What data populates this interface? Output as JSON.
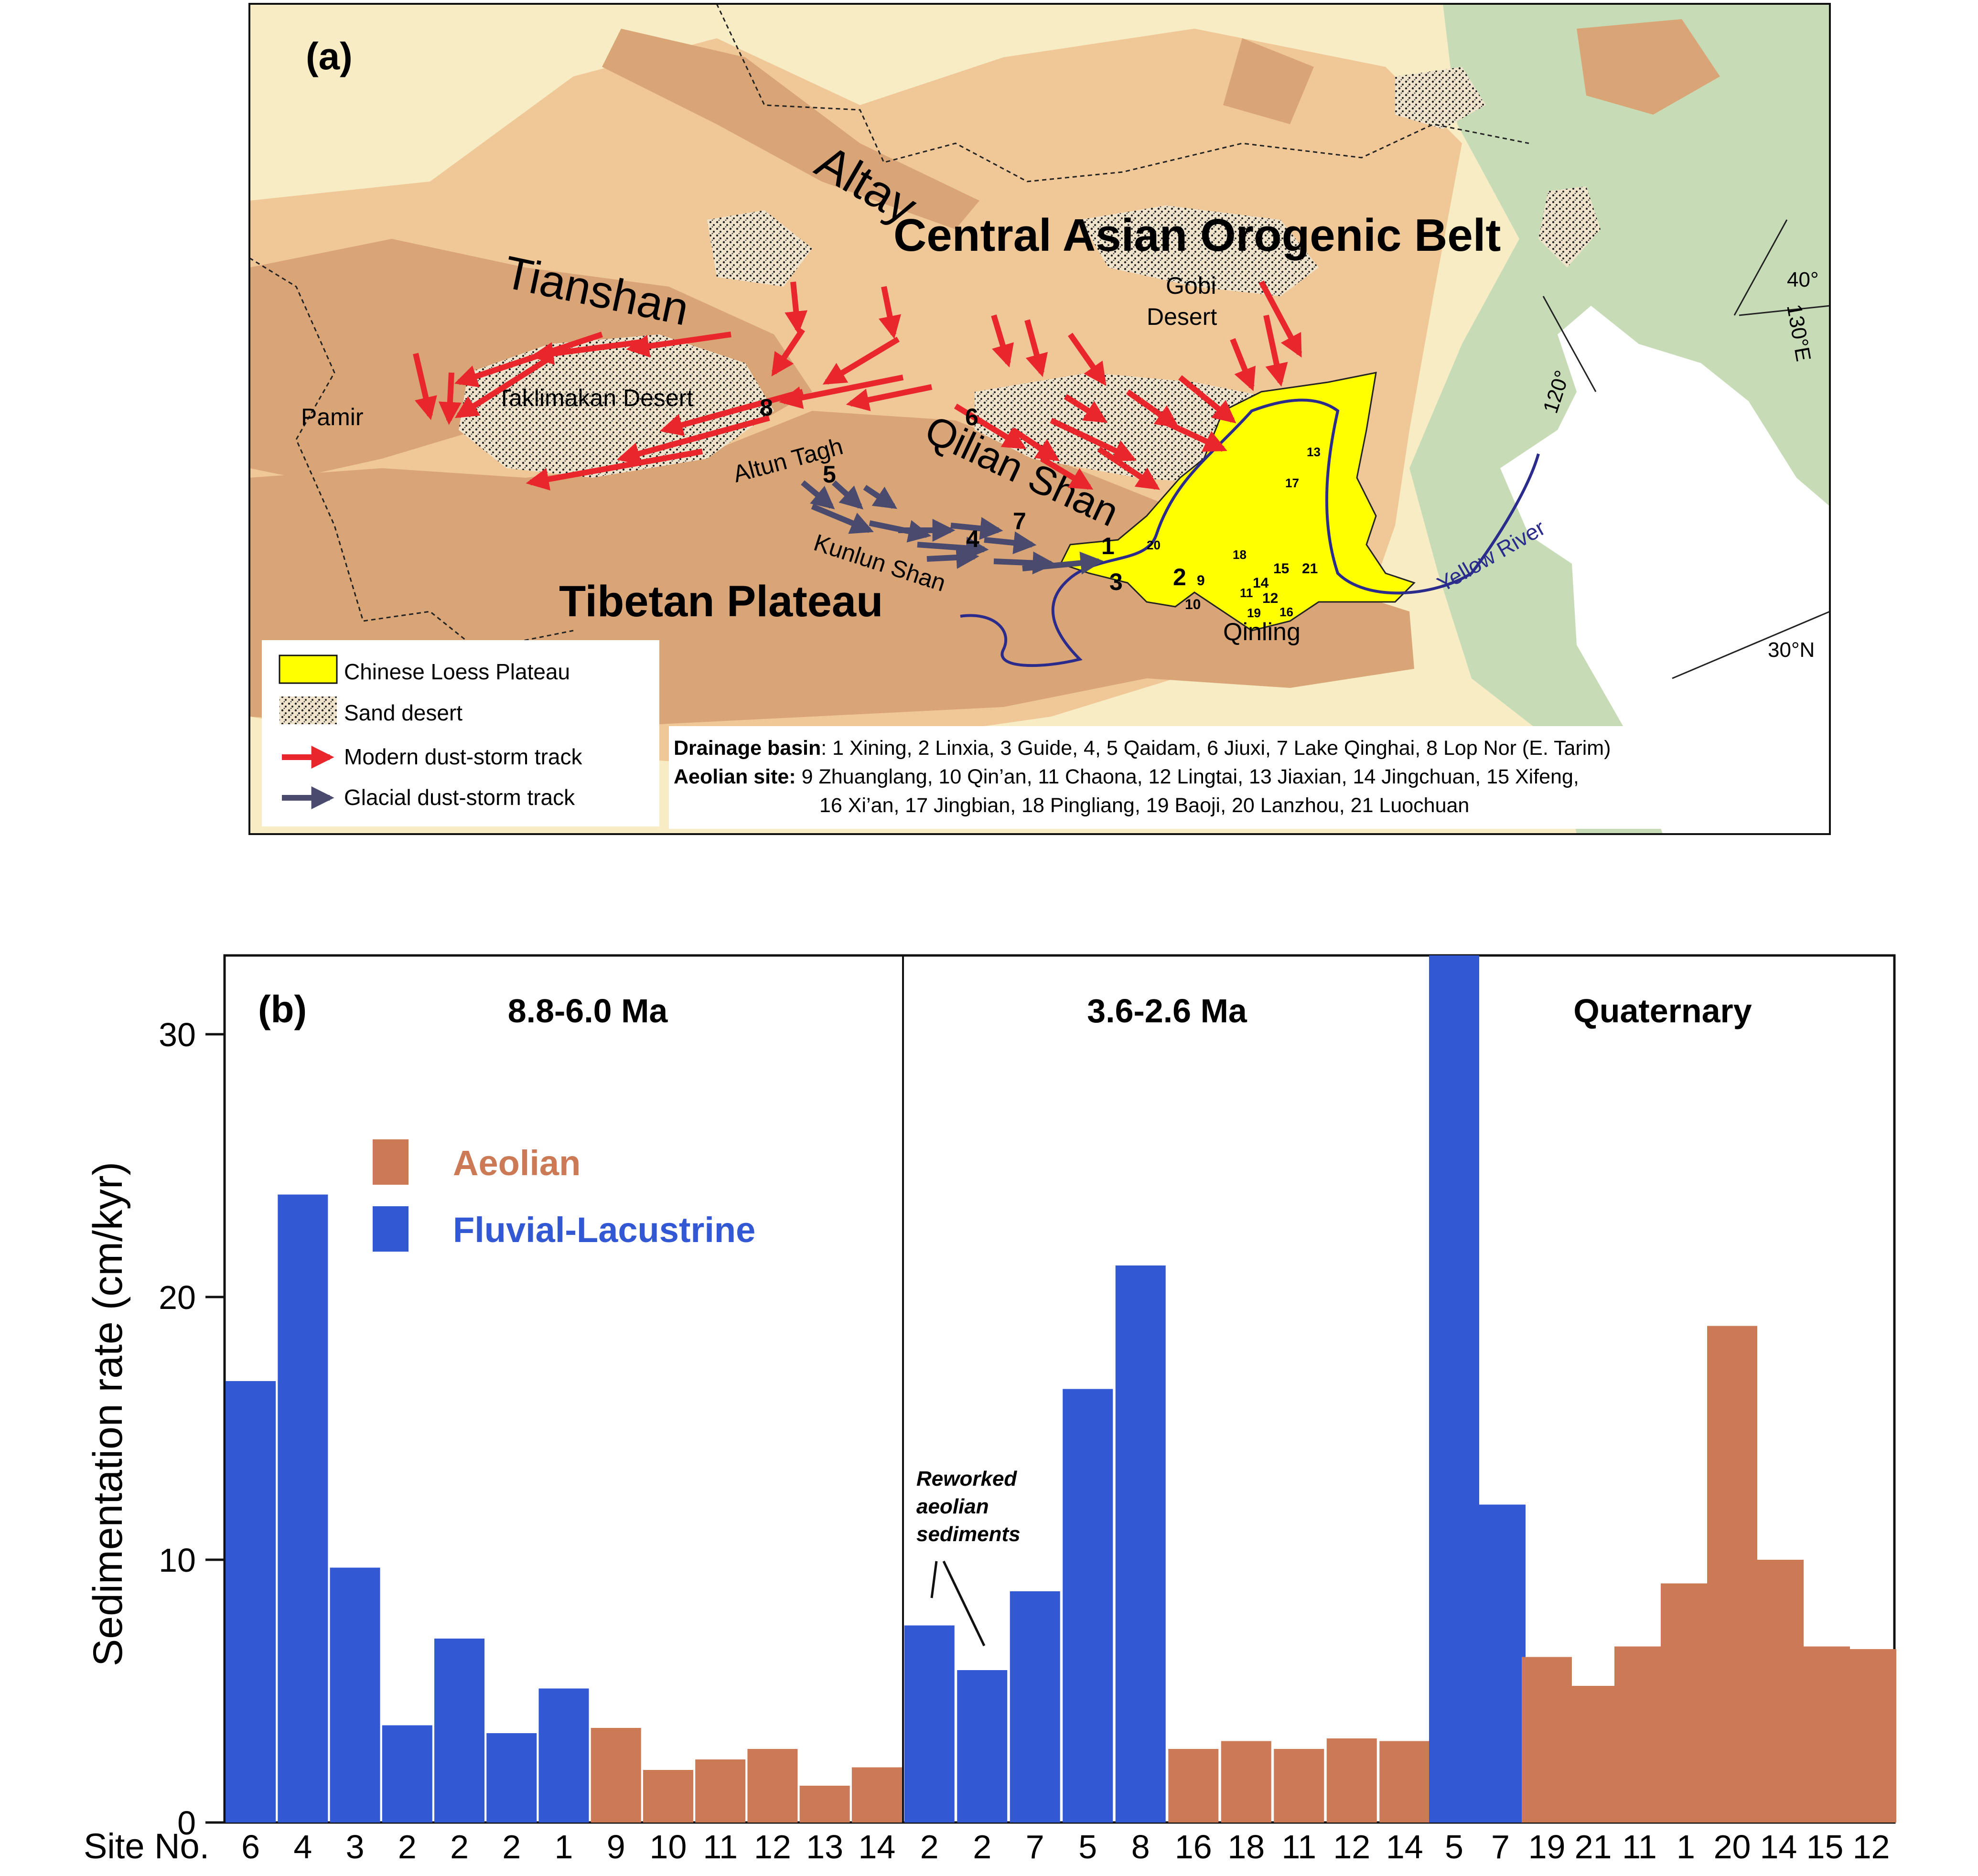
{
  "panel_a": {
    "label": "(a)",
    "regions": {
      "altay": "Altay",
      "caob": "Central Asian Orogenic Belt",
      "tianshan": "Tianshan",
      "pamir": "Pamir",
      "taklimakan": "Taklimakan Desert",
      "gobi_1": "Gobi",
      "gobi_2": "Desert",
      "qilian": "Qilian Shan",
      "altun": "Altun Tagh",
      "kunlun": "Kunlun Shan",
      "tibet": "Tibetan Plateau",
      "qinling": "Qinling",
      "yellow_river": "Yellow River"
    },
    "coords": {
      "lat40": "40°",
      "lon130": "130°E",
      "lon120": "120°",
      "lat30": "30°N"
    },
    "site_labels": [
      "1",
      "2",
      "3",
      "4",
      "5",
      "6",
      "7",
      "8",
      "9",
      "10",
      "11",
      "12",
      "13",
      "14",
      "15",
      "16",
      "17",
      "18",
      "19",
      "20",
      "21"
    ],
    "legend": {
      "loess": "Chinese  Loess Plateau",
      "sand": "Sand desert",
      "modern": "Modern dust-storm track",
      "glacial": "Glacial dust-storm track"
    },
    "notes": {
      "drainage_title": "Drainage basin",
      "drainage_text": ": 1 Xining, 2 Linxia, 3 Guide, 4, 5 Qaidam, 6 Jiuxi, 7 Lake Qinghai, 8 Lop Nor (E. Tarim)",
      "aeolian_title": "Aeolian site:",
      "aeolian_text_1": " 9 Zhuanglang, 10 Qin’an, 11 Chaona, 12 Lingtai, 13 Jiaxian, 14 Jingchuan, 15 Xifeng,",
      "aeolian_text_2": "16 Xi’an, 17 Jingbian, 18 Pingliang, 19 Baoji, 20 Lanzhou, 21 Luochuan"
    },
    "colors": {
      "loess": "#ffff00",
      "modern_track": "#e8262b",
      "glacial_track": "#4a4a6e",
      "river": "#2b2b8c",
      "highland": "#d9a577",
      "lowland": "#f3d3a6",
      "plain": "#f7ecc4",
      "green": "#c7dcb6"
    }
  },
  "chart_data": {
    "type": "bar",
    "label": "(b)",
    "ylabel": "Sedimentation rate (cm/kyr)",
    "ylim": [
      0,
      33
    ],
    "yticks": [
      0,
      10,
      20,
      30
    ],
    "x_axis_prefix": "Site No.",
    "legend": [
      {
        "name": "Aeolian",
        "color": "#cc7a55"
      },
      {
        "name": "Fluvial-Lacustrine",
        "color": "#3358d4"
      }
    ],
    "annotation": [
      "Reworked",
      "aeolian",
      "sediments"
    ],
    "groups": [
      {
        "title": "8.8-6.0 Ma",
        "sites": [
          "6",
          "4",
          "3",
          "2",
          "2",
          "2",
          "1",
          "9",
          "10",
          "11",
          "12",
          "13",
          "14"
        ],
        "values": [
          16.8,
          23.9,
          9.7,
          3.7,
          7.0,
          3.4,
          5.1,
          3.6,
          2.0,
          2.4,
          2.8,
          1.4,
          2.1
        ],
        "types": [
          "F",
          "F",
          "F",
          "F",
          "F",
          "F",
          "F",
          "A",
          "A",
          "A",
          "A",
          "A",
          "A"
        ]
      },
      {
        "title": "3.6-2.6 Ma",
        "sites": [
          "2",
          "2",
          "7",
          "5",
          "8",
          "16",
          "18",
          "11",
          "12",
          "14"
        ],
        "values": [
          7.5,
          5.8,
          8.8,
          16.5,
          21.2,
          2.8,
          3.1,
          2.8,
          3.2,
          3.1
        ],
        "types": [
          "F",
          "F",
          "F",
          "F",
          "F",
          "A",
          "A",
          "A",
          "A",
          "A"
        ]
      },
      {
        "title": "Quaternary",
        "sites": [
          "5",
          "7",
          "19",
          "21",
          "11",
          "1",
          "20",
          "14",
          "15",
          "12"
        ],
        "values": [
          33.0,
          12.1,
          6.3,
          5.2,
          6.7,
          9.1,
          18.9,
          10.0,
          6.7,
          6.6
        ],
        "types": [
          "F",
          "F",
          "A",
          "A",
          "A",
          "A",
          "A",
          "A",
          "A",
          "A"
        ]
      }
    ]
  }
}
